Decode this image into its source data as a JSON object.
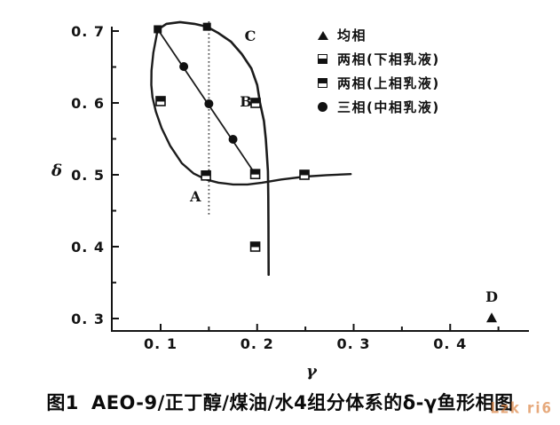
{
  "figure": {
    "caption_prefix": "图1",
    "caption_text": "AEO-9/正丁醇/煤油/水4组分体系的δ-γ鱼形相图",
    "watermark_text": "Lzk ri6",
    "watermark_color": "#d97b35",
    "ink_color": "#141414",
    "background_color": "#ffffff"
  },
  "legend": {
    "items": [
      {
        "marker": "triangle-filled",
        "label": "均相"
      },
      {
        "marker": "square-bottom-filled",
        "label": "两相(下相乳液)"
      },
      {
        "marker": "square-top-filled",
        "label": "两相(上相乳液)"
      },
      {
        "marker": "circle-filled",
        "label": "三相(中相乳液)"
      }
    ]
  },
  "chart_data": {
    "type": "scatter",
    "title": "AEO-9/正丁醇/煤油/水4组分体系的δ-γ鱼形相图 (fish-shaped phase diagram)",
    "xlabel": "γ",
    "ylabel": "δ",
    "xlim": [
      0.05,
      0.48
    ],
    "ylim": [
      0.28,
      0.72
    ],
    "grid": false,
    "legend_position": "upper right",
    "xticks": [
      0.1,
      0.2,
      0.3,
      0.4
    ],
    "xtick_labels": [
      "0. 1",
      "0. 2",
      "0. 3",
      "0. 4"
    ],
    "xminor": [
      0.15,
      0.25,
      0.35,
      0.45
    ],
    "yticks": [
      0.3,
      0.4,
      0.5,
      0.6,
      0.7
    ],
    "ytick_labels": [
      "0. 3",
      "0. 4",
      "0. 5",
      "0. 6",
      "0. 7"
    ],
    "yminor": [
      0.35,
      0.45,
      0.55,
      0.65
    ],
    "series": [
      {
        "name": "均相 (single phase)",
        "marker": "triangle-filled",
        "points": [
          [
            0.443,
            0.301
          ]
        ]
      },
      {
        "name": "两相 boundary (dark squares)",
        "marker": "square-solid",
        "points": [
          [
            0.097,
            0.7025
          ],
          [
            0.148,
            0.706
          ]
        ]
      },
      {
        "name": "两相(上相乳液)",
        "marker": "square-top-filled",
        "points": [
          [
            0.1,
            0.6025
          ],
          [
            0.147,
            0.499
          ],
          [
            0.198,
            0.501
          ],
          [
            0.249,
            0.5
          ],
          [
            0.198,
            0.4
          ],
          [
            0.1984,
            0.6
          ]
        ]
      },
      {
        "name": "三相(中相乳液)",
        "marker": "circle-filled",
        "points": [
          [
            0.124,
            0.6506
          ],
          [
            0.15,
            0.5988
          ],
          [
            0.175,
            0.5494
          ]
        ]
      }
    ],
    "curves": [
      {
        "name": "fish-body-upper-and-tail",
        "style": "solid",
        "width": 2.6,
        "points": [
          [
            0.097,
            0.702
          ],
          [
            0.106,
            0.71
          ],
          [
            0.12,
            0.7125
          ],
          [
            0.135,
            0.71
          ],
          [
            0.148,
            0.706
          ],
          [
            0.16,
            0.697
          ],
          [
            0.173,
            0.685
          ],
          [
            0.184,
            0.668
          ],
          [
            0.194,
            0.648
          ],
          [
            0.2,
            0.625
          ],
          [
            0.203,
            0.6
          ],
          [
            0.207,
            0.575
          ],
          [
            0.209,
            0.55
          ],
          [
            0.21,
            0.53
          ],
          [
            0.2112,
            0.505
          ],
          [
            0.2115,
            0.47
          ],
          [
            0.2117,
            0.43
          ],
          [
            0.2118,
            0.39
          ],
          [
            0.2119,
            0.361
          ]
        ]
      },
      {
        "name": "fish-body-lower-and-tail-axis",
        "style": "solid",
        "width": 2.4,
        "points": [
          [
            0.097,
            0.702
          ],
          [
            0.0925,
            0.67
          ],
          [
            0.0905,
            0.645
          ],
          [
            0.0903,
            0.625
          ],
          [
            0.0915,
            0.608
          ],
          [
            0.095,
            0.588
          ],
          [
            0.101,
            0.565
          ],
          [
            0.11,
            0.54
          ],
          [
            0.122,
            0.516
          ],
          [
            0.134,
            0.502
          ],
          [
            0.147,
            0.4935
          ],
          [
            0.16,
            0.489
          ],
          [
            0.175,
            0.4865
          ],
          [
            0.19,
            0.4865
          ],
          [
            0.205,
            0.489
          ],
          [
            0.225,
            0.4935
          ],
          [
            0.25,
            0.4975
          ],
          [
            0.272,
            0.4995
          ],
          [
            0.297,
            0.501
          ]
        ]
      },
      {
        "name": "three-phase-line",
        "style": "solid",
        "width": 1.8,
        "points": [
          [
            0.097,
            0.7025
          ],
          [
            0.198,
            0.501
          ]
        ]
      },
      {
        "name": "vertical-guide-line",
        "style": "dotted",
        "width": 1.8,
        "points": [
          [
            0.15,
            0.7135
          ],
          [
            0.15,
            0.443
          ]
        ]
      }
    ],
    "annotations": [
      {
        "text": "A",
        "x": 0.136,
        "y": 0.463
      },
      {
        "text": "B",
        "x": 0.1883,
        "y": 0.595
      },
      {
        "text": "C",
        "x": 0.1929,
        "y": 0.6865
      },
      {
        "text": "D",
        "x": 0.443,
        "y": 0.3235
      }
    ]
  }
}
